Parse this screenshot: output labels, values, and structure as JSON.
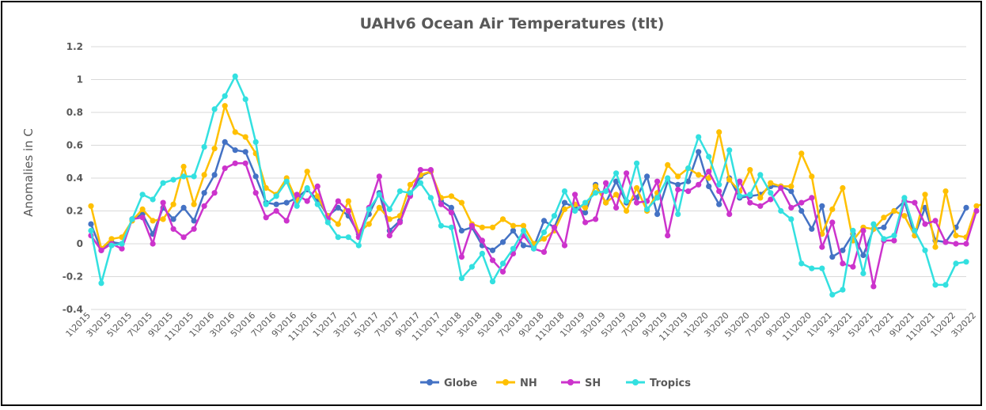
{
  "chart_data": {
    "type": "line",
    "title": "UAHv6 Ocean Air Temperatures (tlt)",
    "ylabel": "Anomalies in C",
    "xlabel": "",
    "ylim": [
      -0.4,
      1.2
    ],
    "yticks": [
      -0.4,
      -0.2,
      0,
      0.2,
      0.4,
      0.6,
      0.8,
      1,
      1.2
    ],
    "ytick_labels": [
      "-0.4",
      "-0.2",
      "0",
      "0.2",
      "0.4",
      "0.6",
      "0.8",
      "1",
      "1.2"
    ],
    "x_labels": [
      "1\\2015",
      "3\\2015",
      "5\\2015",
      "7\\2015",
      "9\\2015",
      "11\\2015",
      "1\\2016",
      "3\\2016",
      "5\\2016",
      "7\\2016",
      "9\\2016",
      "11\\2016",
      "1\\2017",
      "3\\2017",
      "5\\2017",
      "7\\2017",
      "9\\2017",
      "11\\2017",
      "1\\2018",
      "3\\2018",
      "5\\2018",
      "7\\2018",
      "9\\2018",
      "11\\2018",
      "1\\2019",
      "3\\2019",
      "5\\2019",
      "7\\2019",
      "9\\2019",
      "11\\2019",
      "1\\2020",
      "3\\2020",
      "5\\2020",
      "7\\2020",
      "9\\2020",
      "11\\2020",
      "1\\2021",
      "3\\2021",
      "5\\2021",
      "7\\2021",
      "9\\2021",
      "11\\2021",
      "1\\2022",
      "3\\2022"
    ],
    "legend_position": "bottom",
    "grid": true,
    "series": [
      {
        "name": "Globe",
        "color": "#4472c4",
        "values": [
          0.12,
          -0.04,
          0.01,
          0.0,
          0.15,
          0.18,
          0.06,
          0.22,
          0.15,
          0.22,
          0.14,
          0.31,
          0.42,
          0.62,
          0.57,
          0.56,
          0.41,
          0.25,
          0.24,
          0.25,
          0.28,
          0.33,
          0.27,
          0.17,
          0.22,
          0.17,
          0.06,
          0.18,
          0.31,
          0.08,
          0.14,
          0.3,
          0.41,
          0.44,
          0.26,
          0.22,
          0.08,
          0.1,
          -0.01,
          -0.04,
          0.01,
          0.08,
          -0.01,
          -0.02,
          0.14,
          0.1,
          0.25,
          0.22,
          0.19,
          0.36,
          0.25,
          0.38,
          0.25,
          0.28,
          0.41,
          0.18,
          0.38,
          0.36,
          0.38,
          0.56,
          0.35,
          0.24,
          0.4,
          0.28,
          0.29,
          0.3,
          0.35,
          0.35,
          0.32,
          0.2,
          0.09,
          0.23,
          -0.08,
          -0.04,
          0.06,
          -0.07,
          0.09,
          0.1,
          0.2,
          0.26,
          0.05,
          0.22,
          0.02,
          0.01,
          0.1,
          0.22
        ]
      },
      {
        "name": "NH",
        "color": "#ffc000",
        "values": [
          0.23,
          -0.03,
          0.03,
          0.04,
          0.14,
          0.21,
          0.14,
          0.15,
          0.24,
          0.47,
          0.24,
          0.42,
          0.58,
          0.84,
          0.68,
          0.65,
          0.55,
          0.34,
          0.3,
          0.4,
          0.26,
          0.44,
          0.29,
          0.17,
          0.12,
          0.26,
          0.07,
          0.12,
          0.22,
          0.15,
          0.17,
          0.36,
          0.42,
          0.44,
          0.28,
          0.29,
          0.25,
          0.12,
          0.1,
          0.1,
          0.15,
          0.11,
          0.11,
          0.0,
          0.03,
          0.08,
          0.21,
          0.24,
          0.22,
          0.35,
          0.25,
          0.3,
          0.2,
          0.34,
          0.2,
          0.31,
          0.48,
          0.41,
          0.46,
          0.42,
          0.4,
          0.68,
          0.39,
          0.32,
          0.45,
          0.28,
          0.37,
          0.35,
          0.35,
          0.55,
          0.41,
          0.06,
          0.21,
          0.34,
          0.02,
          0.1,
          0.09,
          0.16,
          0.2,
          0.17,
          0.05,
          0.3,
          -0.02,
          0.32,
          0.05,
          0.04,
          0.23,
          0.25
        ]
      },
      {
        "name": "SH",
        "color": "#cc33cc",
        "values": [
          0.05,
          -0.04,
          0.0,
          -0.03,
          0.15,
          0.16,
          0.0,
          0.25,
          0.09,
          0.04,
          0.09,
          0.23,
          0.31,
          0.46,
          0.49,
          0.49,
          0.31,
          0.16,
          0.2,
          0.14,
          0.3,
          0.26,
          0.35,
          0.15,
          0.26,
          0.2,
          0.04,
          0.22,
          0.41,
          0.05,
          0.13,
          0.29,
          0.45,
          0.45,
          0.24,
          0.19,
          -0.08,
          0.11,
          0.02,
          -0.1,
          -0.17,
          -0.06,
          0.05,
          -0.03,
          -0.05,
          0.1,
          -0.01,
          0.3,
          0.13,
          0.15,
          0.37,
          0.22,
          0.43,
          0.25,
          0.26,
          0.38,
          0.05,
          0.33,
          0.32,
          0.36,
          0.44,
          0.32,
          0.18,
          0.38,
          0.25,
          0.23,
          0.27,
          0.34,
          0.22,
          0.25,
          0.28,
          -0.02,
          0.13,
          -0.12,
          -0.14,
          0.08,
          -0.26,
          0.02,
          0.02,
          0.26,
          0.25,
          0.12,
          0.14,
          0.01,
          0.0,
          0.0,
          0.2
        ]
      },
      {
        "name": "Tropics",
        "color": "#33e0e0",
        "values": [
          0.08,
          -0.24,
          -0.01,
          0.0,
          0.15,
          0.3,
          0.27,
          0.37,
          0.39,
          0.41,
          0.41,
          0.59,
          0.82,
          0.9,
          1.02,
          0.88,
          0.62,
          0.24,
          0.29,
          0.38,
          0.23,
          0.34,
          0.24,
          0.13,
          0.04,
          0.04,
          -0.01,
          0.21,
          0.3,
          0.21,
          0.32,
          0.31,
          0.37,
          0.28,
          0.11,
          0.1,
          -0.21,
          -0.14,
          -0.06,
          -0.23,
          -0.12,
          -0.03,
          0.08,
          -0.03,
          0.07,
          0.17,
          0.32,
          0.2,
          0.25,
          0.31,
          0.32,
          0.43,
          0.26,
          0.49,
          0.21,
          0.28,
          0.4,
          0.18,
          0.46,
          0.65,
          0.53,
          0.36,
          0.57,
          0.29,
          0.3,
          0.42,
          0.31,
          0.2,
          0.15,
          -0.12,
          -0.15,
          -0.15,
          -0.31,
          -0.28,
          0.08,
          -0.18,
          0.12,
          0.03,
          0.05,
          0.28,
          0.08,
          -0.04,
          -0.25,
          -0.25,
          -0.12,
          -0.11
        ]
      }
    ]
  }
}
